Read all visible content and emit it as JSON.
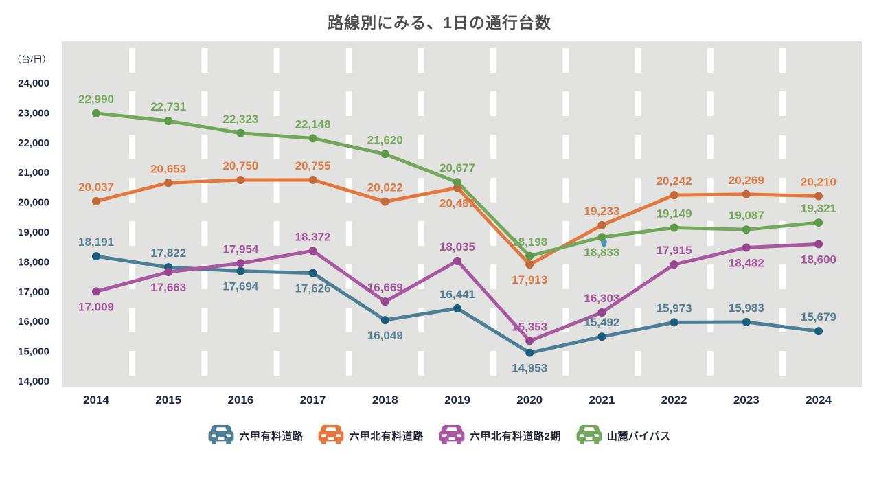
{
  "title": "路線別にみる、1日の通行台数",
  "colors": {
    "title_text": "#4d4d4d",
    "axis_text": "#1f2b45",
    "plot_bg": "#e2e2e0",
    "lane_dash": "#ffffff",
    "page_bg": "#ffffff",
    "legend_text": "#1f2430"
  },
  "chart_data": {
    "type": "line",
    "title": "路線別にみる、1日の通行台数",
    "y_unit": "（台/日）",
    "x": [
      2014,
      2015,
      2016,
      2017,
      2018,
      2019,
      2020,
      2021,
      2022,
      2023,
      2024
    ],
    "ylim": [
      14000,
      24000
    ],
    "y_ticks": [
      24000,
      23000,
      22000,
      21000,
      20000,
      19000,
      18000,
      17000,
      16000,
      15000,
      14000
    ],
    "grid": "vertical-white-dashed-lane-markings",
    "legend_position": "bottom",
    "series": [
      {
        "key": "rokko-toll-road",
        "name": "六甲有料道路",
        "color": "#4d7e95",
        "marker_color": "#1d5d7c",
        "label_color": "#567e93",
        "values": [
          18191,
          17822,
          17694,
          17626,
          16049,
          16441,
          14953,
          15492,
          15973,
          15983,
          15679
        ],
        "label_pos": [
          "above",
          "above",
          "below",
          "below",
          "below",
          "above",
          "below",
          "above",
          "above",
          "above",
          "above"
        ]
      },
      {
        "key": "rokko-north-toll-road",
        "name": "六甲北有料道路",
        "color": "#e4773d",
        "marker_color": "#c4693a",
        "label_color": "#e07a45",
        "values": [
          20037,
          20653,
          20750,
          20755,
          20022,
          20487,
          17913,
          19233,
          20242,
          20269,
          20210
        ],
        "label_pos": [
          "above",
          "above",
          "above",
          "above",
          "above",
          "below",
          "below",
          "above",
          "above",
          "above",
          "above"
        ]
      },
      {
        "key": "rokko-north-toll-road-2",
        "name": "六甲北有料道路2期",
        "color": "#a857a1",
        "marker_color": "#96458f",
        "label_color": "#a4549c",
        "values": [
          17009,
          17663,
          17954,
          18372,
          16669,
          18035,
          15353,
          16303,
          17915,
          18482,
          18600
        ],
        "label_pos": [
          "below",
          "below",
          "above",
          "above",
          "above",
          "above",
          "above",
          "above",
          "above",
          "below",
          "below"
        ]
      },
      {
        "key": "sanroku-bypass",
        "name": "山麓バイパス",
        "color": "#73a75b",
        "marker_color": "#5e9a49",
        "label_color": "#76a75c",
        "values": [
          22990,
          22731,
          22323,
          22148,
          21620,
          20677,
          18198,
          18833,
          19149,
          19087,
          19321
        ],
        "label_pos": [
          "above",
          "above",
          "above",
          "above",
          "above",
          "above",
          "above",
          "below",
          "above",
          "above",
          "above"
        ]
      }
    ],
    "annotation": {
      "type": "cursor-pin",
      "series_key": "sanroku-bypass",
      "x_index": 7,
      "color": "#4a8fc0"
    }
  }
}
